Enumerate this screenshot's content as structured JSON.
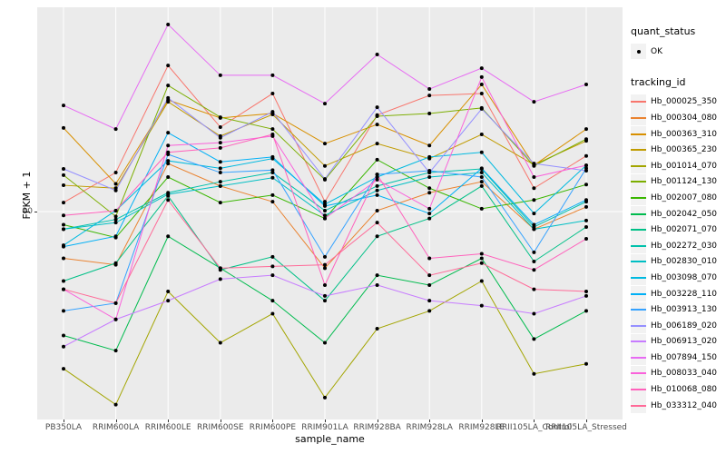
{
  "chart_data": {
    "type": "line",
    "title": "",
    "xlabel": "sample_name",
    "ylabel": "FPKM + 1",
    "y_scale": "log10",
    "y_ticks": [
      10
    ],
    "y_tick_labels": [
      "10"
    ],
    "ylim": [
      1.1,
      90
    ],
    "grid": "major-only-white-on-gray",
    "legend_position": "right",
    "panel_bg": "#EBEBEB",
    "point_marker": "black-dot",
    "categories": [
      "PB350LA",
      "RRIM600LA",
      "RRIM600LE",
      "RRIM600SE",
      "RRIM600PE",
      "RRIM901LA",
      "RRIM928BA",
      "RRIM928LA",
      "RRIM928LE",
      "RRII105LA_Control",
      "RRII105LA_Stressed"
    ],
    "series": [
      {
        "name": "Hb_000025_350",
        "color": "#F8766D",
        "values": [
          11.0,
          15.1,
          46.8,
          24.4,
          34.8,
          11.1,
          27.7,
          34.1,
          34.8,
          12.8,
          18.0
        ]
      },
      {
        "name": "Hb_000304_080",
        "color": "#EA8331",
        "values": [
          6.1,
          5.7,
          16.6,
          13.1,
          11.1,
          5.5,
          10.1,
          12.2,
          13.7,
          8.3,
          10.5
        ]
      },
      {
        "name": "Hb_000363_310",
        "color": "#D89000",
        "values": [
          24.2,
          13.4,
          32.5,
          26.9,
          28.2,
          20.5,
          25.1,
          20.1,
          38.3,
          16.3,
          23.9
        ]
      },
      {
        "name": "Hb_000365_230",
        "color": "#C09B00",
        "values": [
          13.2,
          12.8,
          31.9,
          22.2,
          27.9,
          16.2,
          20.5,
          17.5,
          22.6,
          16.4,
          21.1
        ]
      },
      {
        "name": "Hb_001014_070",
        "color": "#A3A500",
        "values": [
          1.9,
          1.3,
          4.3,
          2.5,
          3.4,
          1.4,
          2.9,
          3.5,
          4.8,
          1.8,
          2.0
        ]
      },
      {
        "name": "Hb_001124_130",
        "color": "#7CAE00",
        "values": [
          14.7,
          9.5,
          37.9,
          27.1,
          23.9,
          14.0,
          27.4,
          28.2,
          29.9,
          16.2,
          21.5
        ]
      },
      {
        "name": "Hb_002007_080",
        "color": "#39B600",
        "values": [
          8.7,
          7.6,
          14.4,
          11.0,
          11.9,
          9.3,
          17.3,
          12.8,
          10.3,
          11.3,
          13.3
        ]
      },
      {
        "name": "Hb_002042_050",
        "color": "#00BB4E",
        "values": [
          2.7,
          2.3,
          7.7,
          5.5,
          3.9,
          2.5,
          5.1,
          4.6,
          6.1,
          2.6,
          3.5
        ]
      },
      {
        "name": "Hb_002071_070",
        "color": "#00C087",
        "values": [
          4.8,
          5.8,
          11.8,
          5.4,
          6.2,
          3.9,
          7.7,
          9.3,
          13.1,
          5.9,
          8.5
        ]
      },
      {
        "name": "Hb_002272_030",
        "color": "#00C1AB",
        "values": [
          8.3,
          9.2,
          12.2,
          13.7,
          15.1,
          10.1,
          13.1,
          15.1,
          15.7,
          8.5,
          11.1
        ]
      },
      {
        "name": "Hb_002830_010",
        "color": "#00BFC4",
        "values": [
          8.3,
          8.9,
          12.0,
          13.1,
          14.3,
          9.6,
          12.5,
          14.4,
          15.1,
          8.3,
          9.1
        ]
      },
      {
        "name": "Hb_003098_070",
        "color": "#00BAE0",
        "values": [
          7.0,
          10.1,
          17.1,
          15.8,
          17.5,
          10.8,
          14.4,
          17.8,
          18.7,
          9.8,
          16.3
        ]
      },
      {
        "name": "Hb_003228_110",
        "color": "#00B0F6",
        "values": [
          6.9,
          7.7,
          23.0,
          16.9,
          17.8,
          10.6,
          11.9,
          9.8,
          15.8,
          8.7,
          11.3
        ]
      },
      {
        "name": "Hb_003913_130",
        "color": "#35A2FF",
        "values": [
          3.5,
          3.8,
          18.3,
          15.1,
          15.5,
          6.2,
          14.8,
          15.4,
          14.4,
          6.5,
          15.8
        ]
      },
      {
        "name": "Hb_006189_020",
        "color": "#9590FF",
        "values": [
          15.7,
          12.5,
          33.2,
          21.8,
          28.7,
          14.1,
          30.1,
          15.1,
          29.6,
          16.6,
          15.4
        ]
      },
      {
        "name": "Hb_006913_020",
        "color": "#C77CFF",
        "values": [
          2.4,
          3.2,
          3.9,
          4.9,
          5.1,
          4.1,
          4.6,
          3.9,
          3.7,
          3.4,
          4.1
        ]
      },
      {
        "name": "Hb_007894_150",
        "color": "#E76BF3",
        "values": [
          30.7,
          23.9,
          72.2,
          42.2,
          42.2,
          31.3,
          52.6,
          36.5,
          45.5,
          31.9,
          38.3
        ]
      },
      {
        "name": "Hb_008033_040",
        "color": "#FA62DB",
        "values": [
          4.4,
          3.2,
          20.1,
          20.7,
          22.2,
          9.3,
          14.0,
          10.3,
          41.4,
          14.4,
          16.3
        ]
      },
      {
        "name": "Hb_010068_080",
        "color": "#FF62BC",
        "values": [
          9.6,
          10.1,
          18.7,
          19.6,
          22.6,
          4.6,
          14.8,
          6.1,
          6.4,
          5.4,
          7.5
        ]
      },
      {
        "name": "Hb_033312_040",
        "color": "#FF6A98",
        "values": [
          4.4,
          3.8,
          11.3,
          5.5,
          5.6,
          5.7,
          8.9,
          5.1,
          5.8,
          4.4,
          4.3
        ]
      }
    ]
  },
  "legend": {
    "quant_status_title": "quant_status",
    "quant_status_items": [
      {
        "label": "OK"
      }
    ],
    "tracking_id_title": "tracking_id"
  },
  "colors": {
    "panel_bg": "#EBEBEB",
    "gridline": "#FFFFFF",
    "tick_text": "#4D4D4D",
    "axis_title": "#000000",
    "legend_key_bg": "#F2F2F2",
    "point": "#000000"
  }
}
